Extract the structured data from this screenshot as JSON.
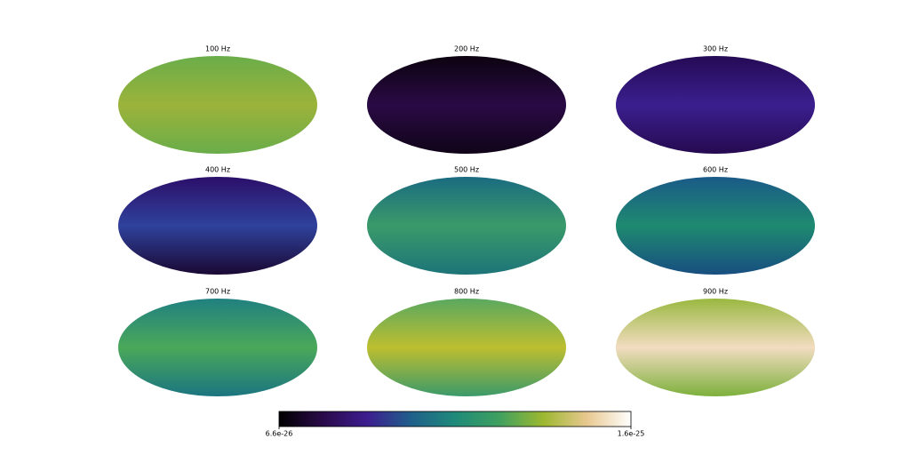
{
  "panels": [
    {
      "title": "100 Hz",
      "colors": [
        "#6aad4a",
        "#9cb33a",
        "#6aad4a"
      ]
    },
    {
      "title": "200 Hz",
      "colors": [
        "#0c0310",
        "#2a0a45",
        "#100418"
      ]
    },
    {
      "title": "300 Hz",
      "colors": [
        "#250a55",
        "#3b1f8f",
        "#250a50"
      ]
    },
    {
      "title": "400 Hz",
      "colors": [
        "#2c0f6a",
        "#2f429c",
        "#1a0833"
      ]
    },
    {
      "title": "500 Hz",
      "colors": [
        "#1a6b80",
        "#3a9a6a",
        "#1d7478"
      ]
    },
    {
      "title": "600 Hz",
      "colors": [
        "#1a5a88",
        "#1f8a70",
        "#174e80"
      ]
    },
    {
      "title": "700 Hz",
      "colors": [
        "#208080",
        "#4aa85a",
        "#1b7580"
      ]
    },
    {
      "title": "800 Hz",
      "colors": [
        "#5aa860",
        "#bdbe30",
        "#3b9a6a"
      ]
    },
    {
      "title": "900 Hz",
      "colors": [
        "#9ab840",
        "#f2dcc0",
        "#7db03c"
      ]
    }
  ],
  "colorbar": {
    "lim": [
      6.6e-26,
      1.6e-25
    ],
    "ticks": [
      6.6e-26,
      1.6e-25
    ],
    "colors": [
      "#000000",
      "#2a0a4a",
      "#3d1d8f",
      "#1f5f8b",
      "#1f8a7a",
      "#3fa060",
      "#9cb830",
      "#e8c890",
      "#ffffff"
    ]
  }
}
